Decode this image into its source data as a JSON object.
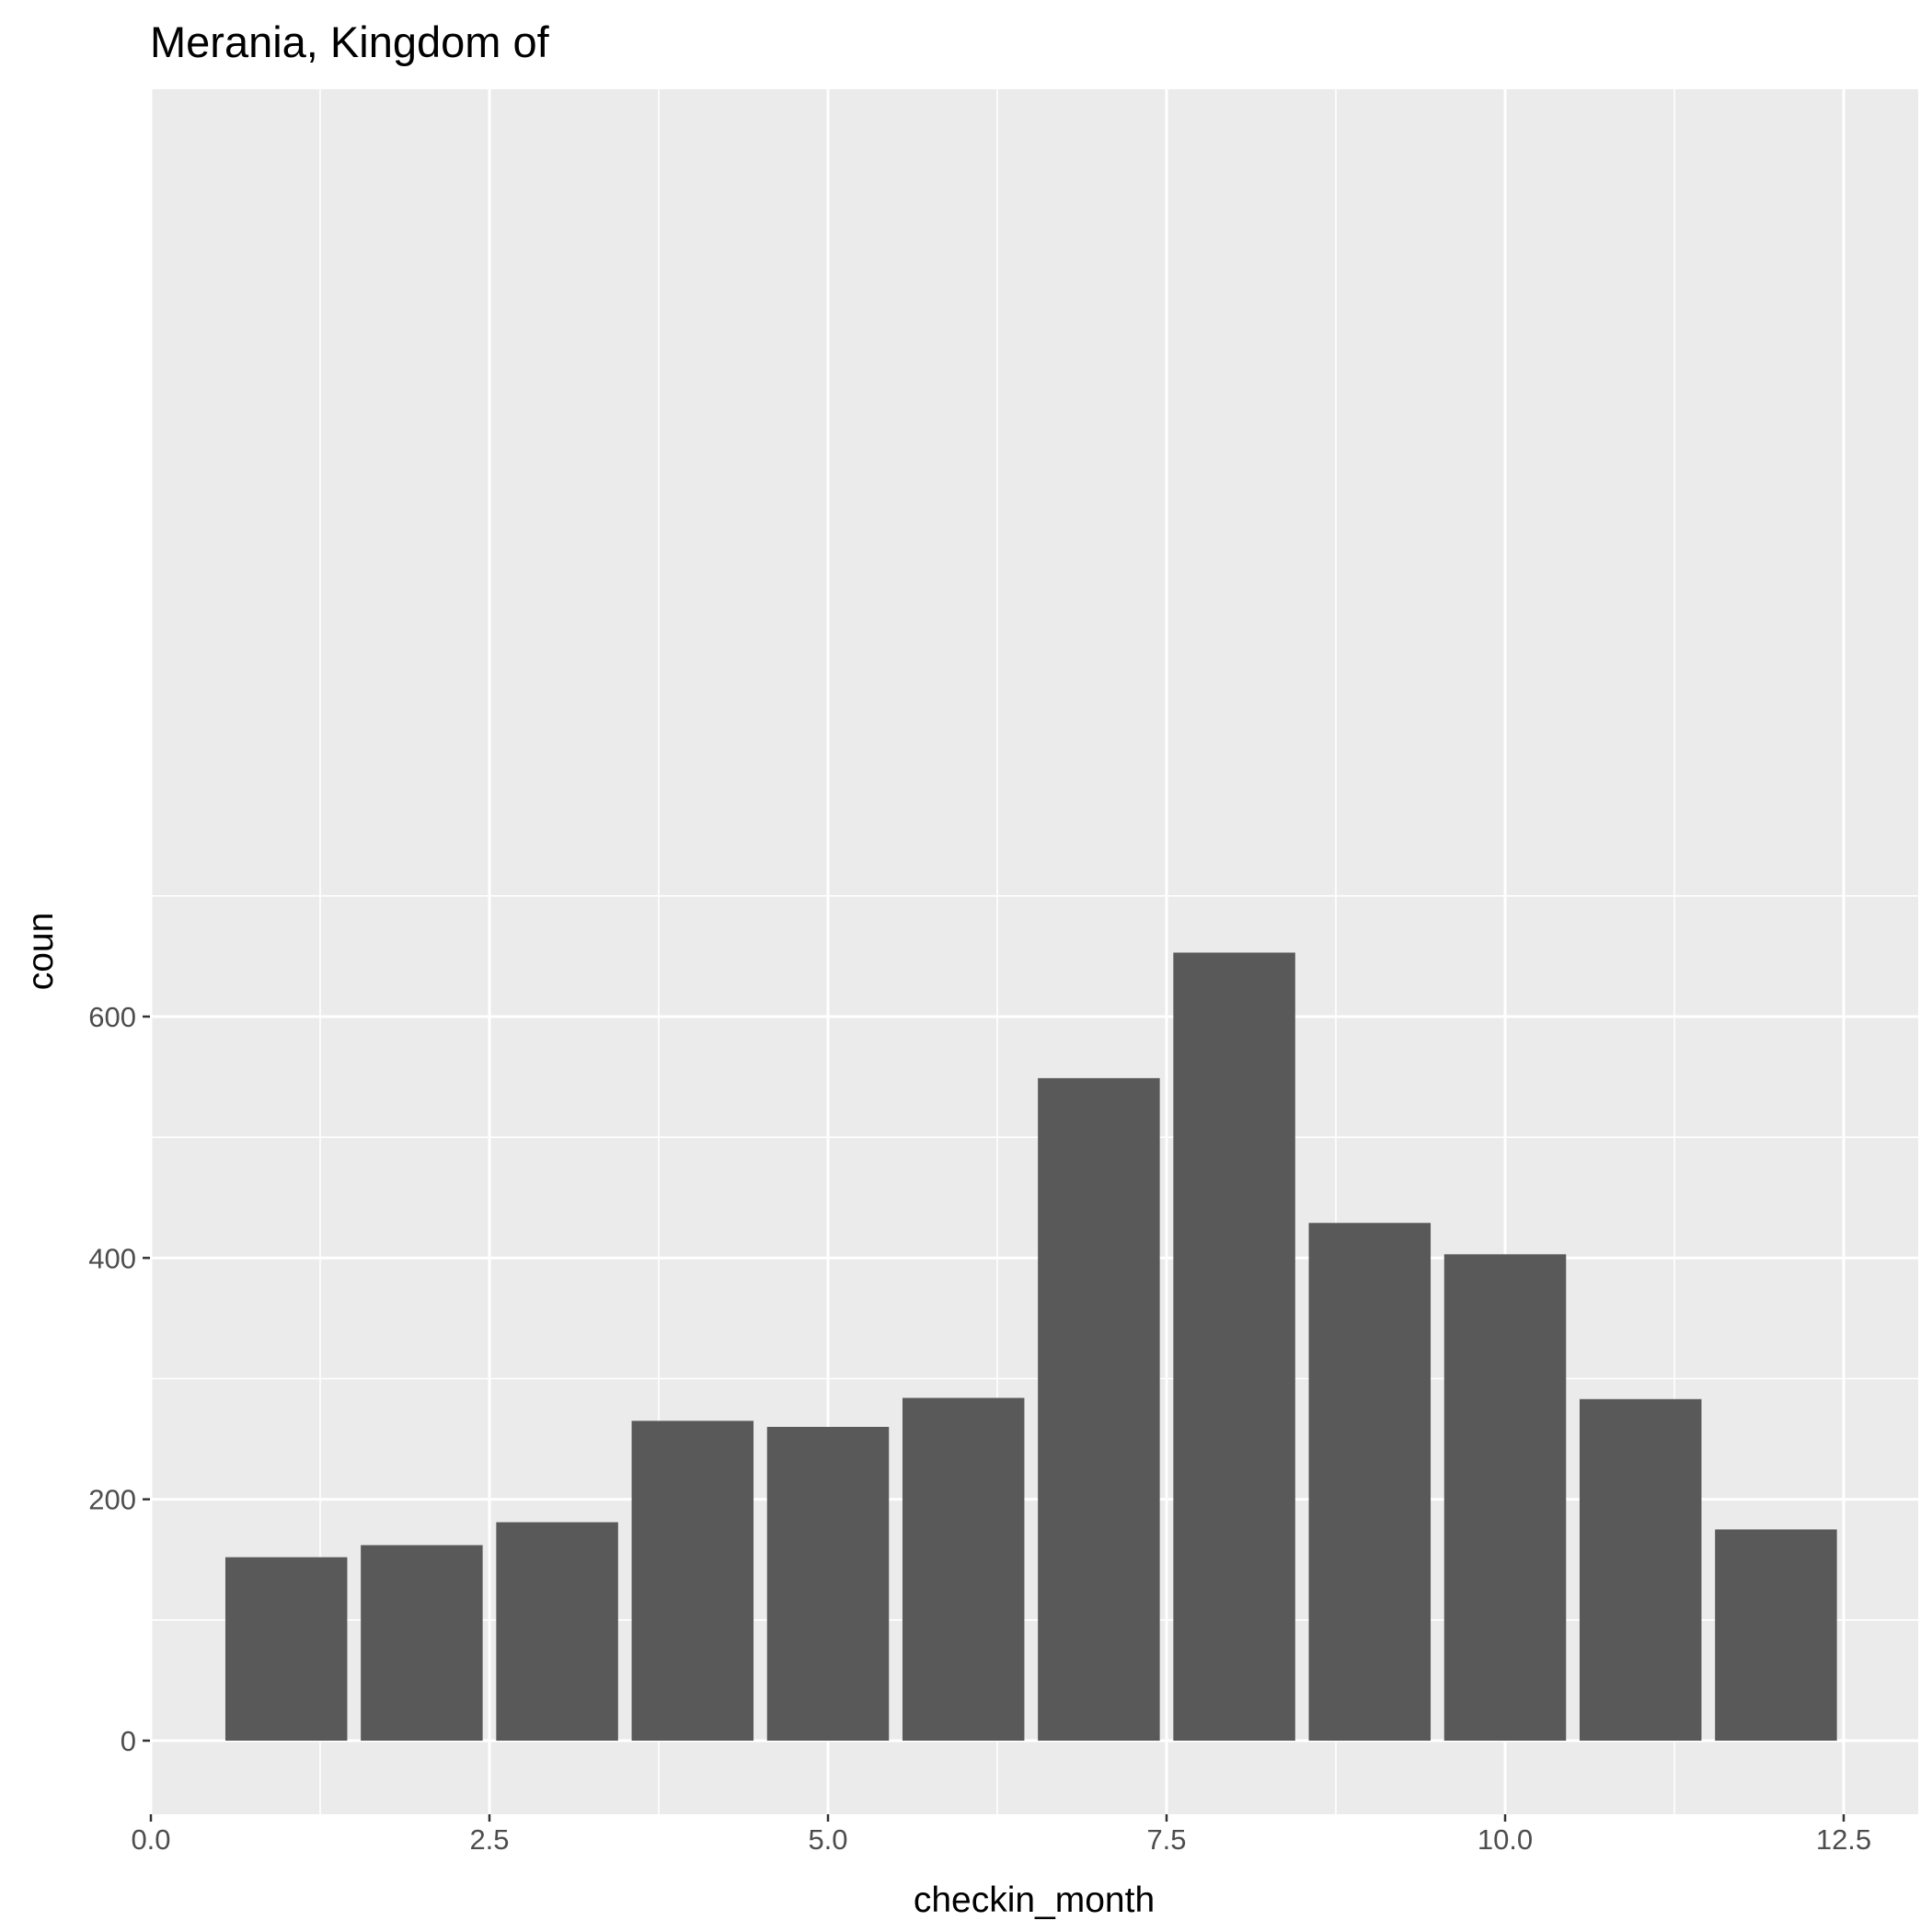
{
  "chart_data": {
    "type": "bar",
    "title": "Merania, Kingdom of",
    "xlabel": "checkin_month",
    "ylabel": "coun",
    "x": [
      1,
      2,
      3,
      4,
      5,
      6,
      7,
      8,
      9,
      10,
      11,
      12
    ],
    "values": [
      152,
      162,
      181,
      265,
      260,
      284,
      549,
      653,
      429,
      403,
      283,
      175
    ],
    "xlim": [
      0.0,
      12.5
    ],
    "ylim": [
      0,
      600
    ],
    "xticks": [
      "0.0",
      "2.5",
      "5.0",
      "7.5",
      "10.0",
      "12.5"
    ],
    "yticks": [
      "0",
      "200",
      "400",
      "600"
    ],
    "grid": true,
    "bar_color": "#595959",
    "panel_background": "#ebebeb",
    "grid_color": "#ffffff"
  }
}
